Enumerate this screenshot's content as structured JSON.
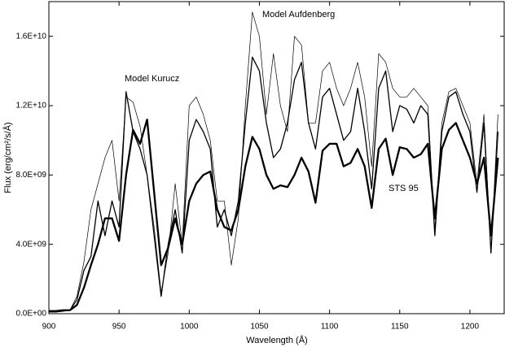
{
  "chart_data": {
    "type": "line",
    "x_label": "Wavelength (Å)",
    "y_label": "Flux (erg/cm²/s/Å)",
    "x": [
      900,
      905,
      910,
      915,
      920,
      925,
      930,
      935,
      940,
      945,
      950,
      955,
      960,
      965,
      970,
      975,
      980,
      985,
      990,
      995,
      1000,
      1005,
      1010,
      1015,
      1020,
      1025,
      1030,
      1035,
      1040,
      1045,
      1050,
      1055,
      1060,
      1065,
      1070,
      1075,
      1080,
      1085,
      1090,
      1095,
      1100,
      1105,
      1110,
      1115,
      1120,
      1125,
      1130,
      1135,
      1140,
      1145,
      1150,
      1155,
      1160,
      1165,
      1170,
      1175,
      1180,
      1185,
      1190,
      1195,
      1200,
      1205,
      1210,
      1215,
      1220
    ],
    "series": [
      {
        "name": "Model Aufdenberg",
        "color": "#000000",
        "values": [
          100000000.0,
          100000000.0,
          150000000.0,
          200000000.0,
          1000000000.0,
          3000000000.0,
          6000000000.0,
          7500000000.0,
          9000000000.0,
          10000000000.0,
          6500000000.0,
          12500000000.0,
          12200000000.0,
          10800000000.0,
          8000000000.0,
          5000000000.0,
          1200000000.0,
          3500000000.0,
          7500000000.0,
          4000000000.0,
          12000000000.0,
          12500000000.0,
          11500000000.0,
          10000000000.0,
          6500000000.0,
          6500000000.0,
          2800000000.0,
          5500000000.0,
          12000000000.0,
          17400000000.0,
          16000000000.0,
          11500000000.0,
          15000000000.0,
          12000000000.0,
          10500000000.0,
          16000000000.0,
          15500000000.0,
          11000000000.0,
          11000000000.0,
          14000000000.0,
          14500000000.0,
          13000000000.0,
          12000000000.0,
          13000000000.0,
          14500000000.0,
          12500000000.0,
          8500000000.0,
          15000000000.0,
          14500000000.0,
          13000000000.0,
          12500000000.0,
          12500000000.0,
          13000000000.0,
          12500000000.0,
          12000000000.0,
          4800000000.0,
          11000000000.0,
          12800000000.0,
          13000000000.0,
          12000000000.0,
          11000000000.0,
          7500000000.0,
          11500000000.0,
          3500000000.0,
          11500000000.0
        ]
      },
      {
        "name": "Model Kurucz",
        "color": "#000000",
        "values": [
          100000000.0,
          100000000.0,
          150000000.0,
          200000000.0,
          800000000.0,
          2500000000.0,
          3300000000.0,
          6500000000.0,
          4500000000.0,
          6500000000.0,
          5000000000.0,
          12800000000.0,
          10500000000.0,
          9500000000.0,
          8000000000.0,
          4500000000.0,
          1000000000.0,
          4000000000.0,
          6000000000.0,
          3500000000.0,
          10000000000.0,
          11200000000.0,
          10500000000.0,
          9500000000.0,
          5000000000.0,
          6000000000.0,
          4500000000.0,
          6500000000.0,
          11000000000.0,
          14800000000.0,
          14000000000.0,
          11000000000.0,
          9000000000.0,
          9500000000.0,
          11000000000.0,
          13500000000.0,
          14500000000.0,
          11000000000.0,
          9500000000.0,
          12500000000.0,
          13000000000.0,
          11500000000.0,
          10000000000.0,
          10500000000.0,
          13000000000.0,
          10500000000.0,
          7200000000.0,
          13000000000.0,
          14000000000.0,
          10500000000.0,
          12000000000.0,
          11800000000.0,
          11000000000.0,
          12000000000.0,
          11500000000.0,
          4500000000.0,
          10500000000.0,
          12500000000.0,
          12800000000.0,
          11500000000.0,
          10500000000.0,
          7000000000.0,
          11000000000.0,
          3500000000.0,
          10500000000.0
        ]
      },
      {
        "name": "STS 95",
        "color": "#000000",
        "values": [
          150000000.0,
          150000000.0,
          200000000.0,
          200000000.0,
          500000000.0,
          1500000000.0,
          2800000000.0,
          4000000000.0,
          5500000000.0,
          5500000000.0,
          4200000000.0,
          8000000000.0,
          10600000000.0,
          9800000000.0,
          11200000000.0,
          7000000000.0,
          2800000000.0,
          3800000000.0,
          5500000000.0,
          4000000000.0,
          6500000000.0,
          7500000000.0,
          8000000000.0,
          8200000000.0,
          6000000000.0,
          5000000000.0,
          4800000000.0,
          6000000000.0,
          8500000000.0,
          10200000000.0,
          9500000000.0,
          8000000000.0,
          7200000000.0,
          7400000000.0,
          7300000000.0,
          8000000000.0,
          9000000000.0,
          8200000000.0,
          6400000000.0,
          9400000000.0,
          9800000000.0,
          9800000000.0,
          8500000000.0,
          8700000000.0,
          9500000000.0,
          8500000000.0,
          6100000000.0,
          9500000000.0,
          10100000000.0,
          8000000000.0,
          9600000000.0,
          9500000000.0,
          9000000000.0,
          9200000000.0,
          9800000000.0,
          5500000000.0,
          9500000000.0,
          10600000000.0,
          11000000000.0,
          10000000000.0,
          9000000000.0,
          7500000000.0,
          9000000000.0,
          4500000000.0,
          9000000000.0
        ]
      }
    ],
    "line_widths": [
      0.7,
      1.3,
      2.3
    ],
    "xlim": [
      900,
      1225
    ],
    "ylim": [
      0,
      18000000000.0
    ],
    "xticks": [
      900,
      950,
      1000,
      1050,
      1100,
      1150,
      1200
    ],
    "yticks": [
      {
        "value": 0,
        "label": "0.0E+00"
      },
      {
        "value": 4000000000.0,
        "label": "4.0E+09"
      },
      {
        "value": 8000000000.0,
        "label": "8.0E+09"
      },
      {
        "value": 12000000000.0,
        "label": "1.2E+10"
      },
      {
        "value": 16000000000.0,
        "label": "1.6E+10"
      }
    ],
    "grid": false
  }
}
